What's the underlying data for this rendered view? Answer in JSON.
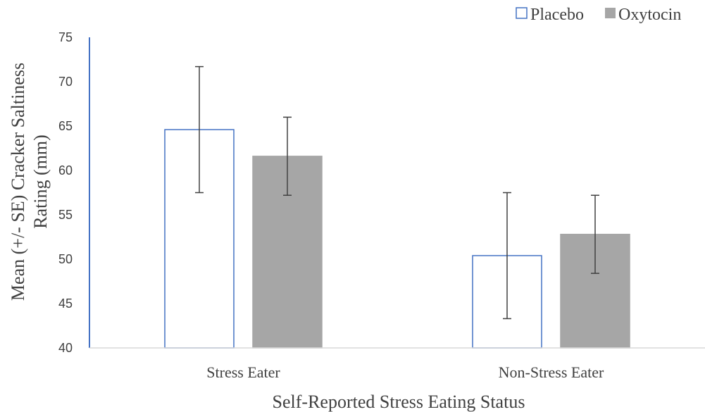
{
  "chart_data": {
    "type": "bar",
    "categories": [
      "Stress Eater",
      "Non-Stress Eater"
    ],
    "series": [
      {
        "name": "Placebo",
        "values": [
          64.6,
          50.4
        ],
        "error": [
          7.1,
          7.1
        ],
        "color": "#ffffff",
        "stroke": "#4472c4"
      },
      {
        "name": "Oxytocin",
        "values": [
          61.6,
          52.8
        ],
        "error": [
          4.4,
          4.4
        ],
        "color": "#a6a6a6",
        "stroke": "#a6a6a6"
      }
    ],
    "xlabel": "Self-Reported Stress Eating Status",
    "ylabel_lines": [
      "Mean (+/- SE) Cracker Saltiness",
      "Rating (mm)"
    ],
    "ylim": [
      40,
      75
    ],
    "yticks": [
      "40",
      "45",
      "50",
      "55",
      "60",
      "65",
      "70",
      "75"
    ],
    "grid": false,
    "legend_position": "top-right",
    "axis_color": "#4472c4",
    "errorbar_color": "#404040"
  }
}
